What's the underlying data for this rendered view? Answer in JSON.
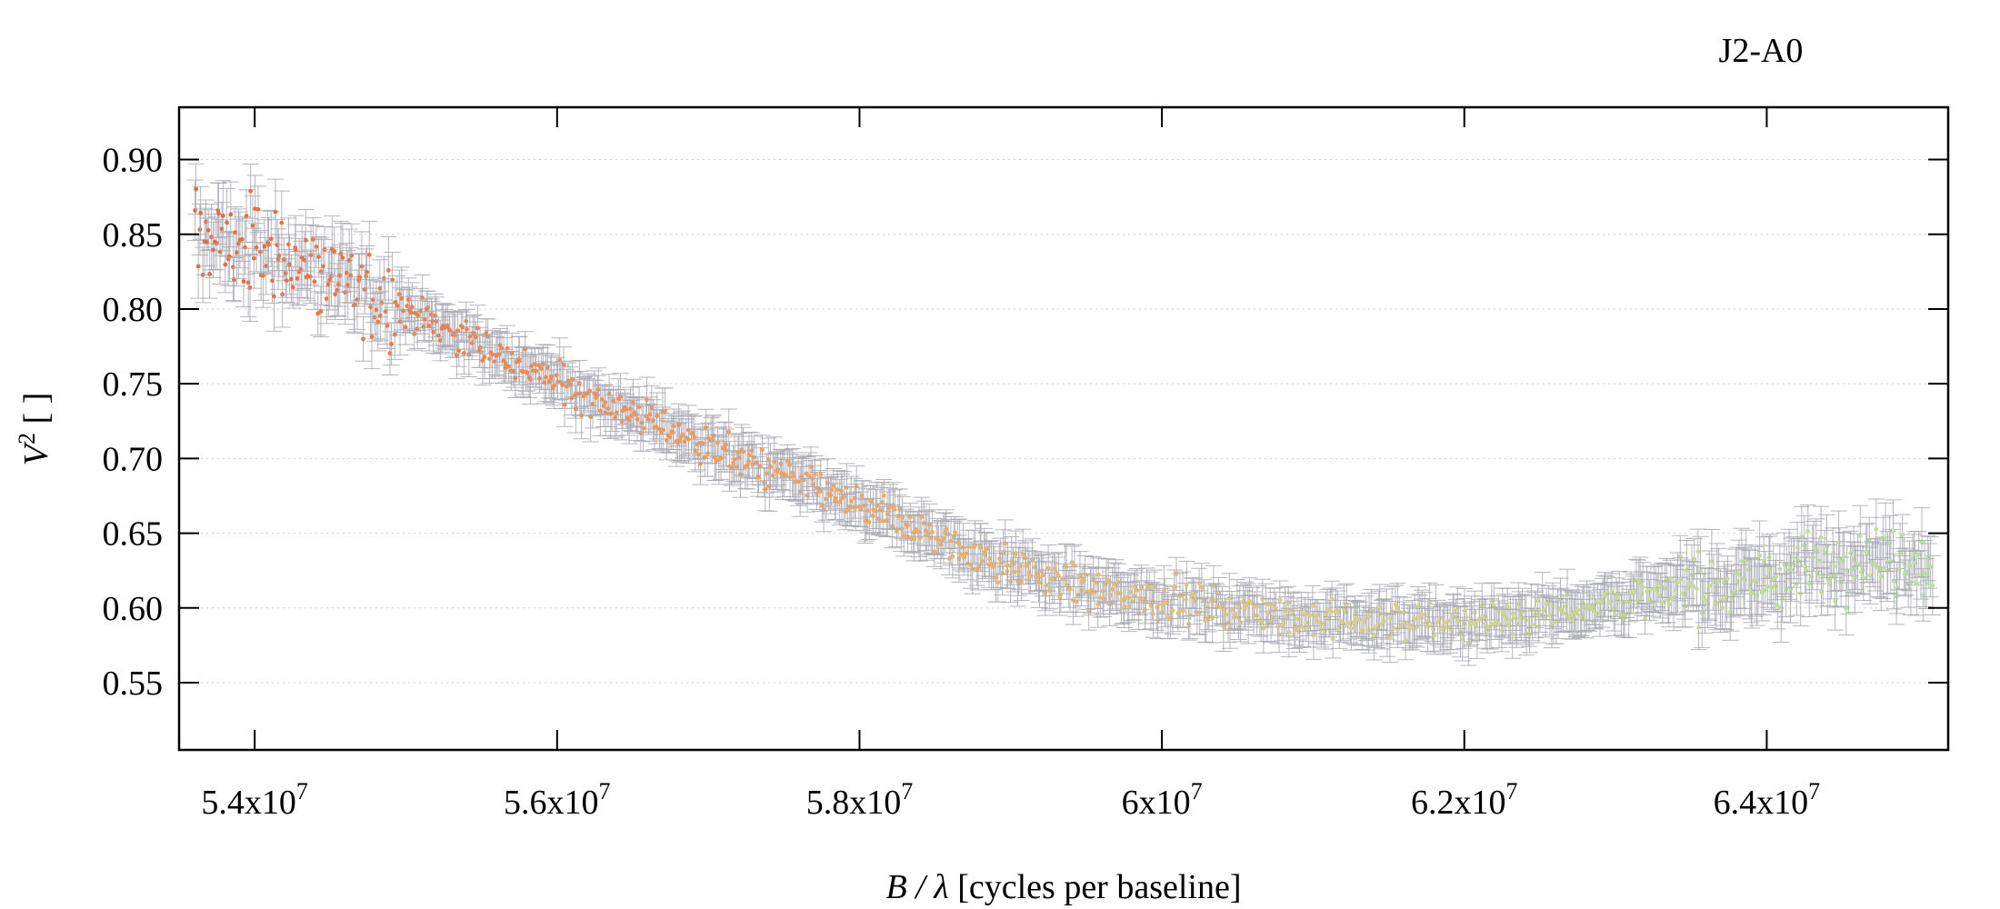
{
  "chart_data": {
    "type": "scatter",
    "title": "J2-A0",
    "xlabel": {
      "var": "B / λ",
      "rest": " [cycles per baseline]"
    },
    "ylabel": {
      "var": "V",
      "sup": "2",
      "rest": " [ ]"
    },
    "xlim": [
      53500000,
      65200000
    ],
    "ylim": [
      0.505,
      0.935
    ],
    "grid": {
      "y": true,
      "x": false,
      "style": "dotted"
    },
    "x_ticks": [
      {
        "value": 54000000,
        "mant": "5.4x10",
        "exp": "7"
      },
      {
        "value": 56000000,
        "mant": "5.6x10",
        "exp": "7"
      },
      {
        "value": 58000000,
        "mant": "5.8x10",
        "exp": "7"
      },
      {
        "value": 60000000,
        "mant": "6x10",
        "exp": "7"
      },
      {
        "value": 62000000,
        "mant": "6.2x10",
        "exp": "7"
      },
      {
        "value": 64000000,
        "mant": "6.4x10",
        "exp": "7"
      }
    ],
    "y_ticks": [
      "0.55",
      "0.60",
      "0.65",
      "0.70",
      "0.75",
      "0.80",
      "0.85",
      "0.90"
    ],
    "error_bar_color": "#a9a9b3",
    "color_gradient": [
      "#e8673c",
      "#f2a25e",
      "#d9d08a",
      "#b7e3a0"
    ],
    "trend": {
      "x": [
        53600000,
        54200000,
        55000000,
        55800000,
        56500000,
        57200000,
        58000000,
        58800000,
        59500000,
        60200000,
        61000000,
        61800000,
        62500000,
        63200000,
        64000000,
        64600000,
        65100000
      ],
      "y": [
        0.85,
        0.835,
        0.8,
        0.76,
        0.73,
        0.7,
        0.668,
        0.635,
        0.612,
        0.603,
        0.592,
        0.59,
        0.596,
        0.608,
        0.62,
        0.635,
        0.63
      ]
    },
    "point_count": 1150,
    "typical_error": 0.012
  }
}
